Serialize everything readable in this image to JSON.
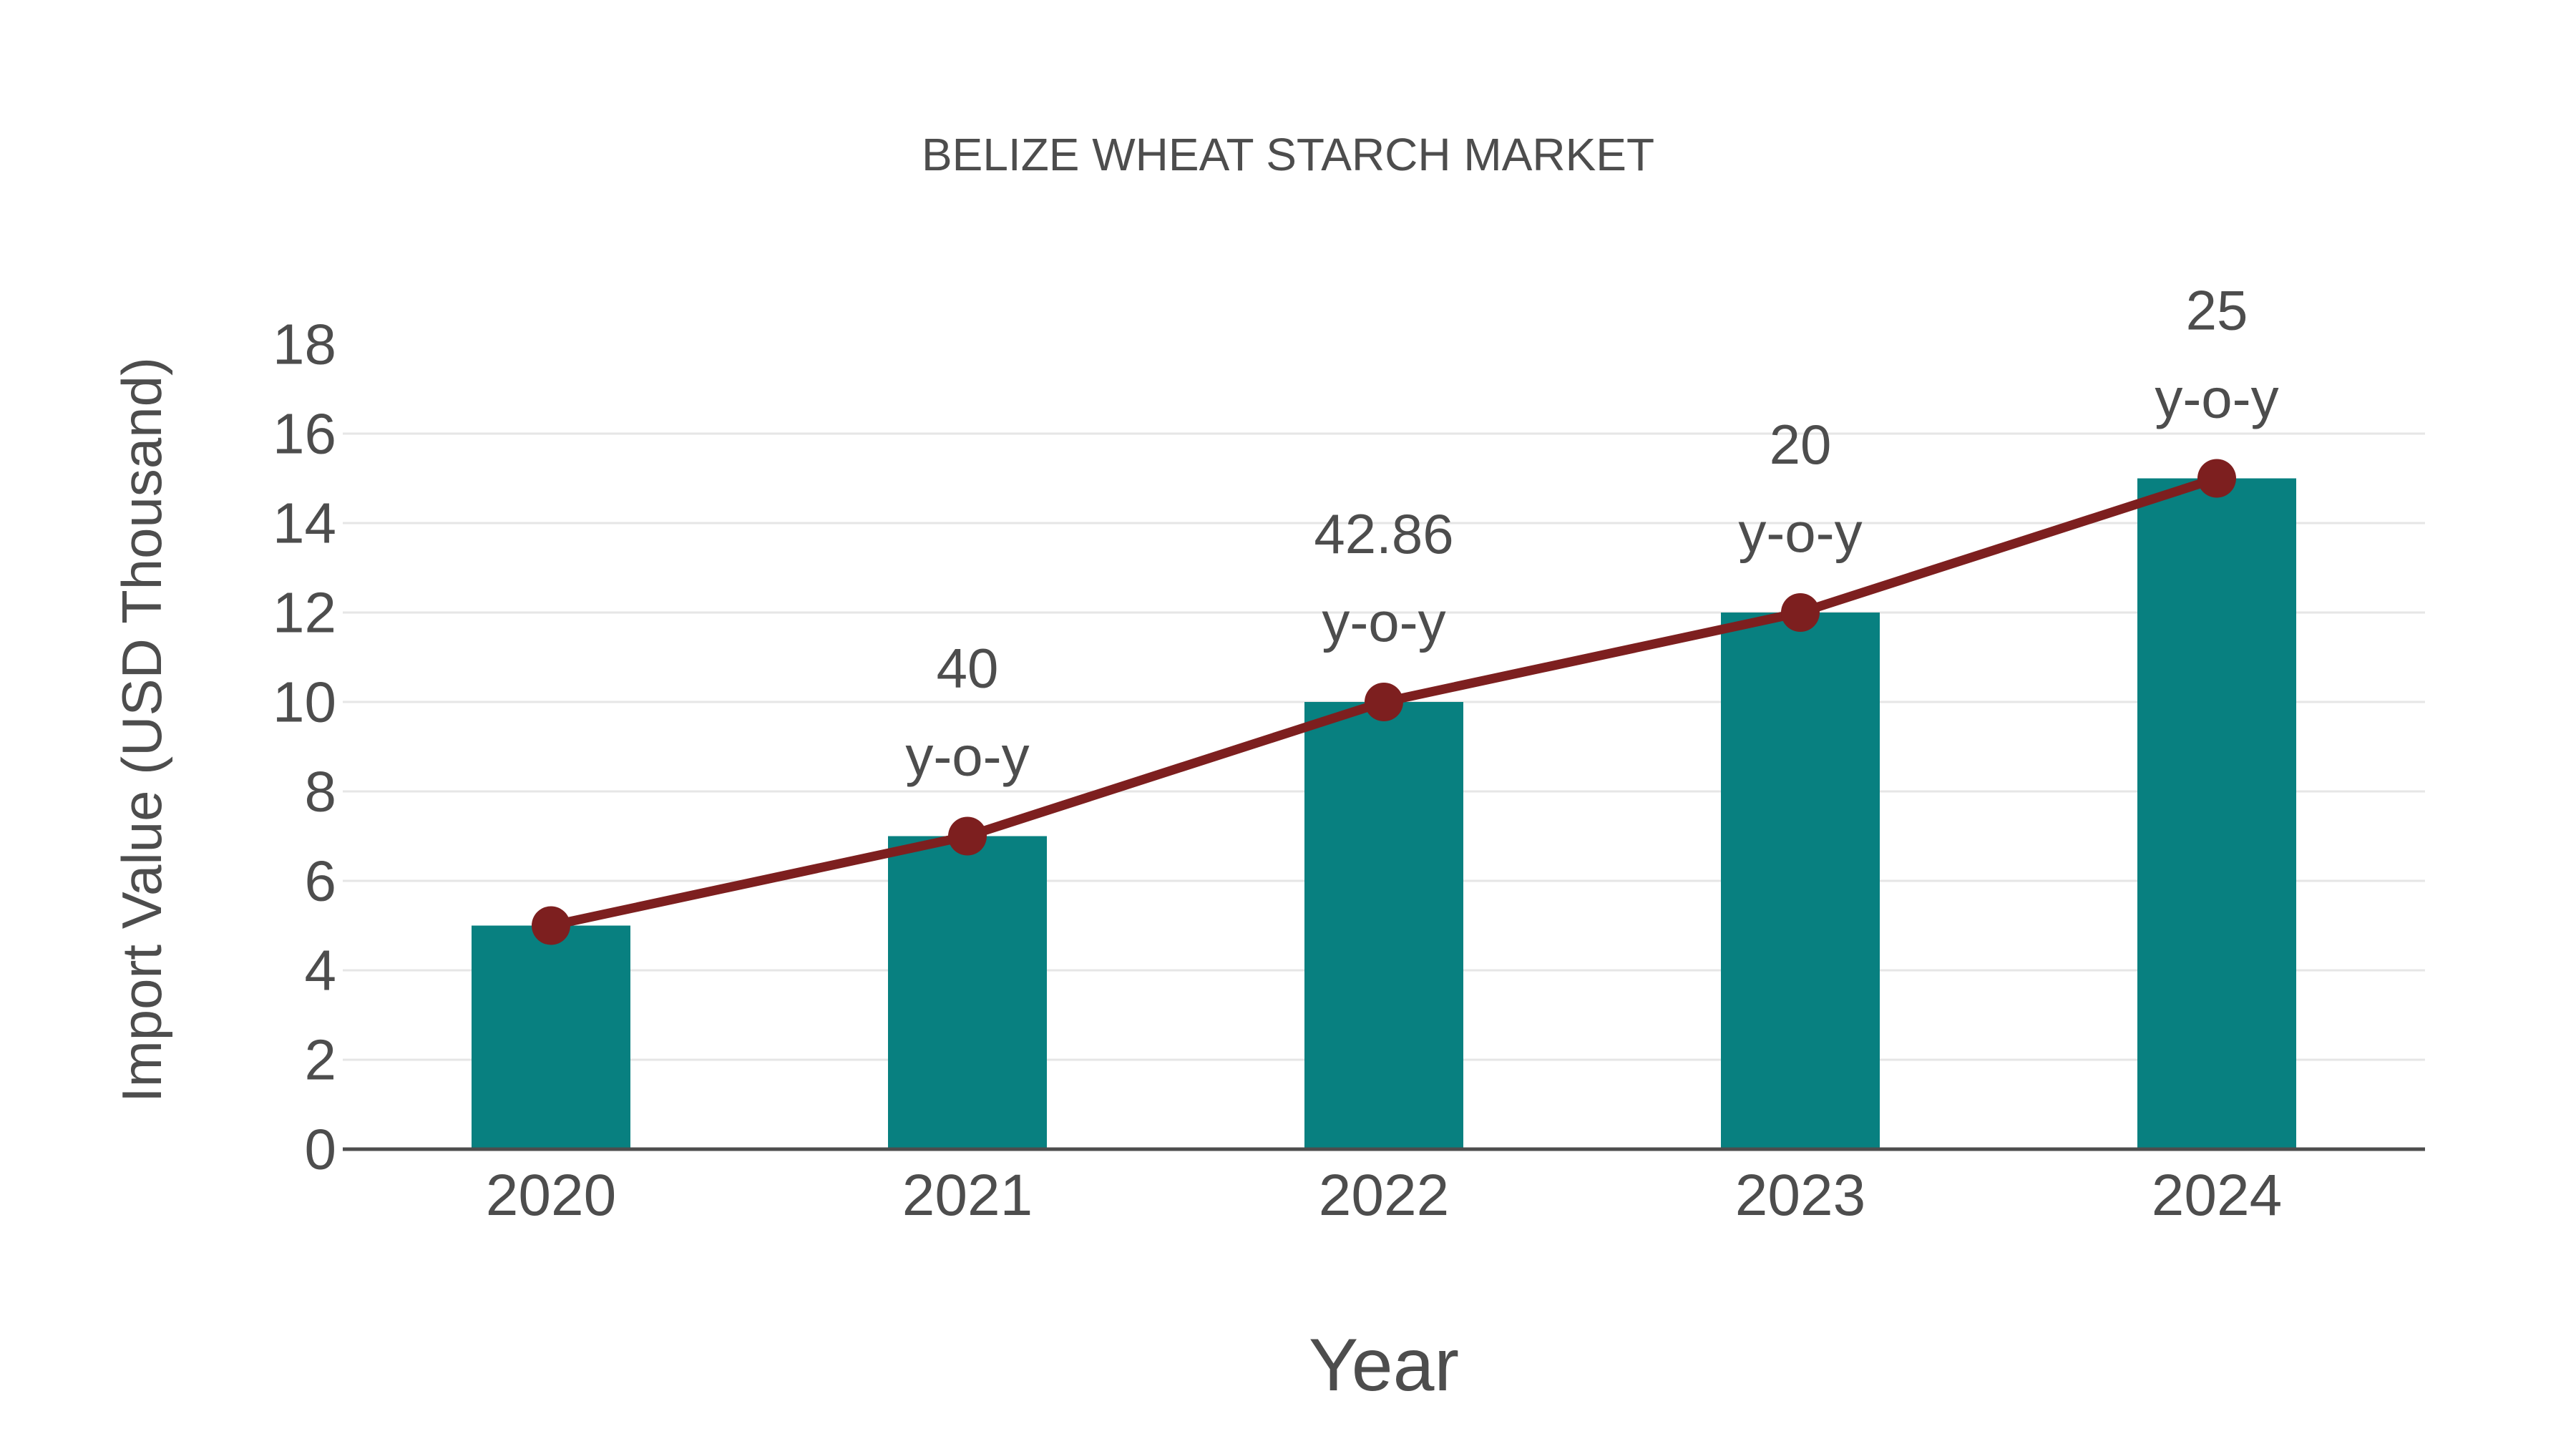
{
  "chart": {
    "title": "BELIZE WHEAT STARCH MARKET",
    "x_axis_label": "Year",
    "y_axis_label": "Import Value (USD Thousand)"
  },
  "chart_data": {
    "type": "bar",
    "subtype": "bar-with-line-overlay",
    "title": "BELIZE WHEAT STARCH MARKET",
    "xlabel": "Year",
    "ylabel": "Import Value (USD Thousand)",
    "categories": [
      "2020",
      "2021",
      "2022",
      "2023",
      "2024"
    ],
    "series": [
      {
        "name": "Import Value (USD Thousand)",
        "type": "bar",
        "values": [
          5,
          7,
          10,
          12,
          15
        ]
      },
      {
        "name": "Import Value trend line",
        "type": "line",
        "values": [
          5,
          7,
          10,
          12,
          15
        ]
      }
    ],
    "annotations": [
      {
        "category": "2021",
        "lines": [
          "40",
          "y-o-y"
        ]
      },
      {
        "category": "2022",
        "lines": [
          "42.86",
          "y-o-y"
        ]
      },
      {
        "category": "2023",
        "lines": [
          "20",
          "y-o-y"
        ]
      },
      {
        "category": "2024",
        "lines": [
          "25",
          "y-o-y"
        ]
      }
    ],
    "ylim": [
      0,
      18
    ],
    "yticks": [
      0,
      2,
      4,
      6,
      8,
      10,
      12,
      14,
      16,
      18
    ],
    "grid": "horizontal-only, no gridline at top tick 18, baseline is dark axis line",
    "legend_position": "none"
  },
  "colors": {
    "bar_fill": "#088080",
    "line_stroke": "#7d1f1f",
    "marker_fill": "#7d1f1f",
    "text": "#4d4d4d",
    "gridline": "#e6e6e6",
    "axis_line": "#4d4d4d",
    "background": "#ffffff"
  }
}
